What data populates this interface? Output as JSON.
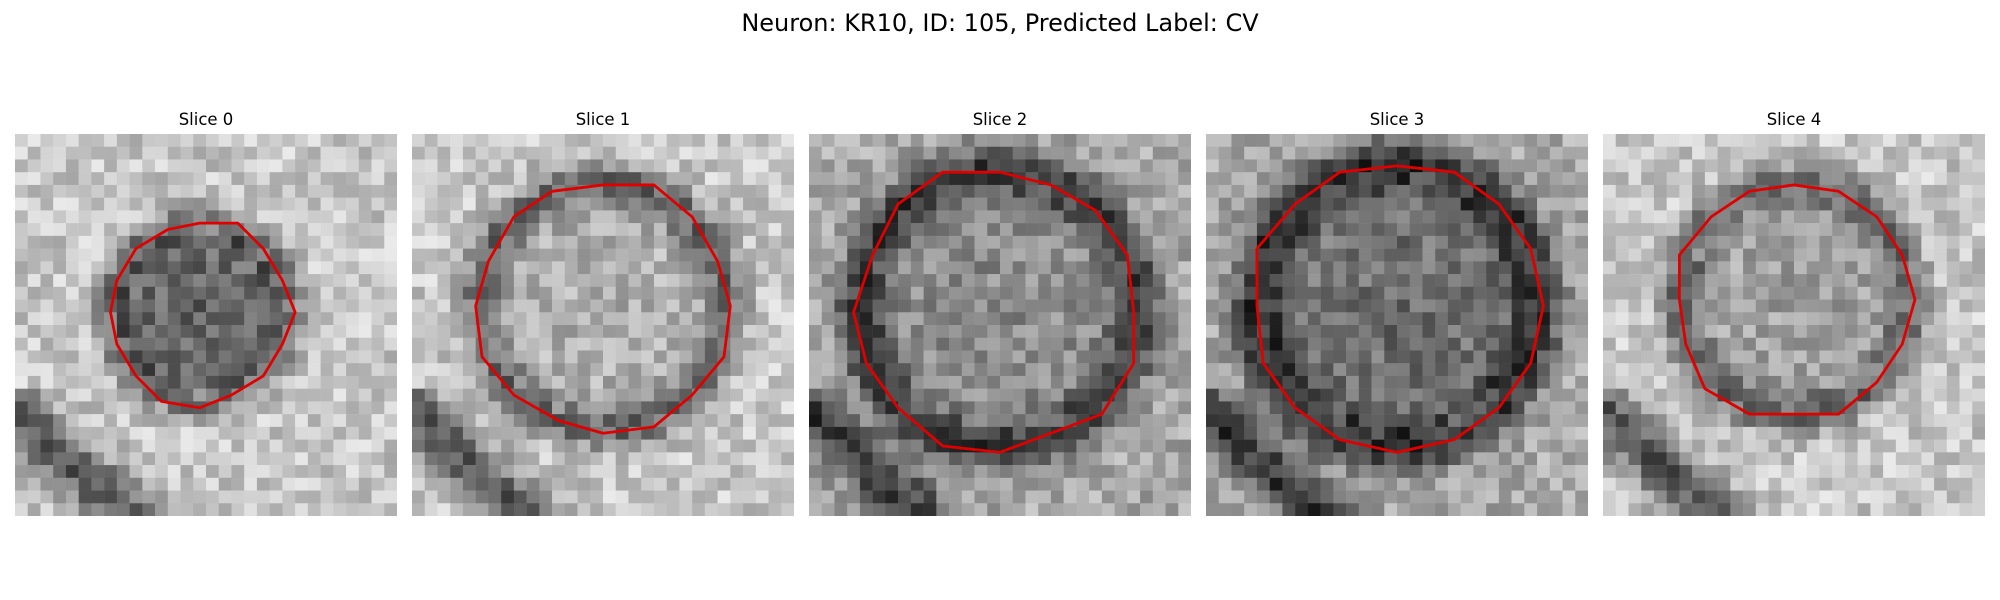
{
  "figure": {
    "title": "Neuron: KR10, ID: 105, Predicted Label: CV",
    "contour_color": "#e00000",
    "panels": [
      {
        "title": "Slice 0",
        "ring_dark": 0.62,
        "center_dark": 0.78,
        "background": "light"
      },
      {
        "title": "Slice 1",
        "ring_dark": 0.7,
        "center_dark": 0.18,
        "background": "light"
      },
      {
        "title": "Slice 2",
        "ring_dark": 0.8,
        "center_dark": 0.22,
        "background": "medium"
      },
      {
        "title": "Slice 3",
        "ring_dark": 0.85,
        "center_dark": 0.45,
        "background": "medium"
      },
      {
        "title": "Slice 4",
        "ring_dark": 0.7,
        "center_dark": 0.3,
        "background": "light"
      }
    ]
  }
}
